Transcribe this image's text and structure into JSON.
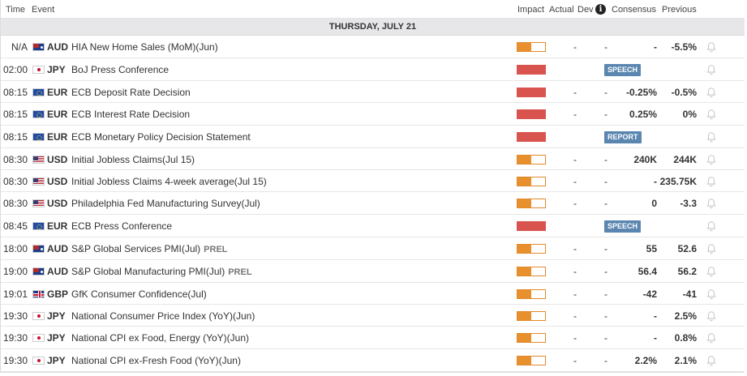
{
  "header": {
    "time": "Time",
    "event": "Event",
    "impact": "Impact",
    "actual": "Actual",
    "dev": "Dev",
    "consensus": "Consensus",
    "previous": "Previous"
  },
  "day_label": "THURSDAY, JULY 21",
  "colors": {
    "impact_high": "#d9534f",
    "impact_medium": "#e8902e",
    "badge": "#5a86b0"
  },
  "rows": [
    {
      "time": "N/A",
      "flag": "au-flag",
      "cur": "AUD",
      "event": "HIA New Home Sales (MoM)(Jun)",
      "prel": "",
      "impact": 0.5,
      "actual": "-",
      "dev": "-",
      "cons": "-",
      "prev": "-5.5%",
      "badge": ""
    },
    {
      "time": "02:00",
      "flag": "jp-flag",
      "cur": "JPY",
      "event": "BoJ Press Conference",
      "prel": "",
      "impact": 1.0,
      "actual": "",
      "dev": "",
      "cons": "",
      "prev": "",
      "badge": "SPEECH"
    },
    {
      "time": "08:15",
      "flag": "eu-flag",
      "cur": "EUR",
      "event": "ECB Deposit Rate Decision",
      "prel": "",
      "impact": 1.0,
      "actual": "-",
      "dev": "-",
      "cons": "-0.25%",
      "prev": "-0.5%",
      "badge": ""
    },
    {
      "time": "08:15",
      "flag": "eu-flag",
      "cur": "EUR",
      "event": "ECB Interest Rate Decision",
      "prel": "",
      "impact": 1.0,
      "actual": "-",
      "dev": "-",
      "cons": "0.25%",
      "prev": "0%",
      "badge": ""
    },
    {
      "time": "08:15",
      "flag": "eu-flag",
      "cur": "EUR",
      "event": "ECB Monetary Policy Decision Statement",
      "prel": "",
      "impact": 1.0,
      "actual": "",
      "dev": "",
      "cons": "",
      "prev": "",
      "badge": "REPORT"
    },
    {
      "time": "08:30",
      "flag": "us-flag",
      "cur": "USD",
      "event": "Initial Jobless Claims(Jul 15)",
      "prel": "",
      "impact": 0.5,
      "actual": "-",
      "dev": "-",
      "cons": "240K",
      "prev": "244K",
      "badge": ""
    },
    {
      "time": "08:30",
      "flag": "us-flag",
      "cur": "USD",
      "event": "Initial Jobless Claims 4-week average(Jul 15)",
      "prel": "",
      "impact": 0.5,
      "actual": "-",
      "dev": "-",
      "cons": "-",
      "prev": "235.75K",
      "badge": ""
    },
    {
      "time": "08:30",
      "flag": "us-flag",
      "cur": "USD",
      "event": "Philadelphia Fed Manufacturing Survey(Jul)",
      "prel": "",
      "impact": 0.5,
      "actual": "-",
      "dev": "-",
      "cons": "0",
      "prev": "-3.3",
      "badge": ""
    },
    {
      "time": "08:45",
      "flag": "eu-flag",
      "cur": "EUR",
      "event": "ECB Press Conference",
      "prel": "",
      "impact": 1.0,
      "actual": "",
      "dev": "",
      "cons": "",
      "prev": "",
      "badge": "SPEECH"
    },
    {
      "time": "18:00",
      "flag": "au-flag",
      "cur": "AUD",
      "event": "S&P Global Services PMI(Jul)",
      "prel": "PREL",
      "impact": 0.5,
      "actual": "-",
      "dev": "-",
      "cons": "55",
      "prev": "52.6",
      "badge": ""
    },
    {
      "time": "19:00",
      "flag": "au-flag",
      "cur": "AUD",
      "event": "S&P Global Manufacturing PMI(Jul)",
      "prel": "PREL",
      "impact": 0.5,
      "actual": "-",
      "dev": "-",
      "cons": "56.4",
      "prev": "56.2",
      "badge": ""
    },
    {
      "time": "19:01",
      "flag": "gb-flag",
      "cur": "GBP",
      "event": "GfK Consumer Confidence(Jul)",
      "prel": "",
      "impact": 0.5,
      "actual": "-",
      "dev": "-",
      "cons": "-42",
      "prev": "-41",
      "badge": ""
    },
    {
      "time": "19:30",
      "flag": "jp-flag",
      "cur": "JPY",
      "event": "National Consumer Price Index (YoY)(Jun)",
      "prel": "",
      "impact": 0.5,
      "actual": "-",
      "dev": "-",
      "cons": "-",
      "prev": "2.5%",
      "badge": ""
    },
    {
      "time": "19:30",
      "flag": "jp-flag",
      "cur": "JPY",
      "event": "National CPI ex Food, Energy (YoY)(Jun)",
      "prel": "",
      "impact": 0.5,
      "actual": "-",
      "dev": "-",
      "cons": "-",
      "prev": "0.8%",
      "badge": ""
    },
    {
      "time": "19:30",
      "flag": "jp-flag",
      "cur": "JPY",
      "event": "National CPI ex-Fresh Food (YoY)(Jun)",
      "prel": "",
      "impact": 0.5,
      "actual": "-",
      "dev": "-",
      "cons": "2.2%",
      "prev": "2.1%",
      "badge": ""
    }
  ]
}
